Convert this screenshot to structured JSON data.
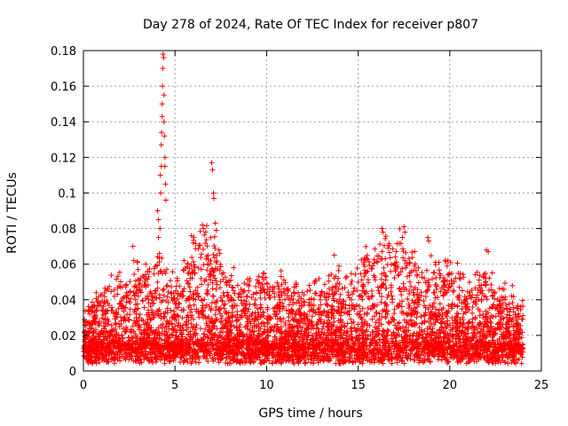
{
  "chart_data": {
    "type": "scatter",
    "title": "Day 278 of 2024, Rate Of TEC Index for receiver p807",
    "xlabel": "GPS time / hours",
    "ylabel": "ROTI / TECUs",
    "xlim": [
      0,
      25
    ],
    "ylim": [
      0,
      0.18
    ],
    "xticks": [
      0,
      5,
      10,
      15,
      20,
      25
    ],
    "xtick_labels": [
      "0",
      "5",
      "10",
      "15",
      "20",
      "25"
    ],
    "yticks": [
      0,
      0.02,
      0.04,
      0.06,
      0.08,
      0.1,
      0.12,
      0.14,
      0.16,
      0.18
    ],
    "ytick_labels": [
      "0",
      "0.02",
      "0.04",
      "0.06",
      "0.08",
      "0.1",
      "0.12",
      "0.14",
      "0.16",
      "0.18"
    ],
    "grid": true,
    "marker": "+",
    "color": "#ff0000",
    "envelope_x": [
      0,
      0.5,
      1,
      1.5,
      2,
      2.5,
      3,
      3.5,
      4,
      4.5,
      5,
      5.5,
      6,
      6.5,
      7,
      7.5,
      8,
      8.5,
      9,
      9.5,
      10,
      10.5,
      11,
      11.5,
      12,
      12.5,
      13,
      13.5,
      14,
      14.5,
      15,
      15.5,
      16,
      16.5,
      17,
      17.5,
      18,
      18.5,
      19,
      19.5,
      20,
      20.5,
      21,
      21.5,
      22,
      22.5,
      23,
      23.5,
      24
    ],
    "envelope_y": [
      0.026,
      0.036,
      0.042,
      0.046,
      0.048,
      0.05,
      0.055,
      0.05,
      0.06,
      0.058,
      0.045,
      0.055,
      0.068,
      0.08,
      0.072,
      0.056,
      0.045,
      0.044,
      0.046,
      0.048,
      0.05,
      0.052,
      0.048,
      0.042,
      0.04,
      0.046,
      0.048,
      0.05,
      0.052,
      0.05,
      0.056,
      0.062,
      0.068,
      0.07,
      0.074,
      0.072,
      0.062,
      0.058,
      0.06,
      0.054,
      0.056,
      0.05,
      0.046,
      0.05,
      0.055,
      0.046,
      0.04,
      0.038,
      0.032
    ],
    "notable_points": [
      {
        "x": 2.7,
        "y": 0.07
      },
      {
        "x": 2.75,
        "y": 0.062
      },
      {
        "x": 3.4,
        "y": 0.06
      },
      {
        "x": 3.5,
        "y": 0.056
      },
      {
        "x": 4.05,
        "y": 0.09
      },
      {
        "x": 4.1,
        "y": 0.085
      },
      {
        "x": 4.1,
        "y": 0.075
      },
      {
        "x": 4.15,
        "y": 0.066
      },
      {
        "x": 4.18,
        "y": 0.08
      },
      {
        "x": 4.2,
        "y": 0.11
      },
      {
        "x": 4.22,
        "y": 0.1
      },
      {
        "x": 4.25,
        "y": 0.115
      },
      {
        "x": 4.25,
        "y": 0.127
      },
      {
        "x": 4.27,
        "y": 0.134
      },
      {
        "x": 4.3,
        "y": 0.143
      },
      {
        "x": 4.3,
        "y": 0.15
      },
      {
        "x": 4.32,
        "y": 0.16
      },
      {
        "x": 4.33,
        "y": 0.17
      },
      {
        "x": 4.35,
        "y": 0.178
      },
      {
        "x": 4.38,
        "y": 0.176
      },
      {
        "x": 4.4,
        "y": 0.155
      },
      {
        "x": 4.4,
        "y": 0.14
      },
      {
        "x": 4.42,
        "y": 0.132
      },
      {
        "x": 4.45,
        "y": 0.12
      },
      {
        "x": 4.45,
        "y": 0.115
      },
      {
        "x": 4.48,
        "y": 0.105
      },
      {
        "x": 4.5,
        "y": 0.096
      },
      {
        "x": 4.55,
        "y": 0.057
      },
      {
        "x": 5.9,
        "y": 0.076
      },
      {
        "x": 6.0,
        "y": 0.072
      },
      {
        "x": 6.5,
        "y": 0.082
      },
      {
        "x": 6.55,
        "y": 0.08
      },
      {
        "x": 6.8,
        "y": 0.065
      },
      {
        "x": 7.0,
        "y": 0.117
      },
      {
        "x": 7.05,
        "y": 0.113
      },
      {
        "x": 7.1,
        "y": 0.1
      },
      {
        "x": 7.12,
        "y": 0.097
      },
      {
        "x": 7.2,
        "y": 0.083
      },
      {
        "x": 7.25,
        "y": 0.079
      },
      {
        "x": 7.4,
        "y": 0.068
      },
      {
        "x": 7.45,
        "y": 0.066
      },
      {
        "x": 8.2,
        "y": 0.058
      },
      {
        "x": 13.7,
        "y": 0.065
      },
      {
        "x": 15.3,
        "y": 0.06
      },
      {
        "x": 16.3,
        "y": 0.08
      },
      {
        "x": 16.35,
        "y": 0.078
      },
      {
        "x": 17.5,
        "y": 0.081
      },
      {
        "x": 17.55,
        "y": 0.078
      },
      {
        "x": 18.8,
        "y": 0.075
      },
      {
        "x": 18.85,
        "y": 0.073
      },
      {
        "x": 19.9,
        "y": 0.062
      },
      {
        "x": 22.0,
        "y": 0.068
      },
      {
        "x": 22.1,
        "y": 0.067
      }
    ]
  }
}
